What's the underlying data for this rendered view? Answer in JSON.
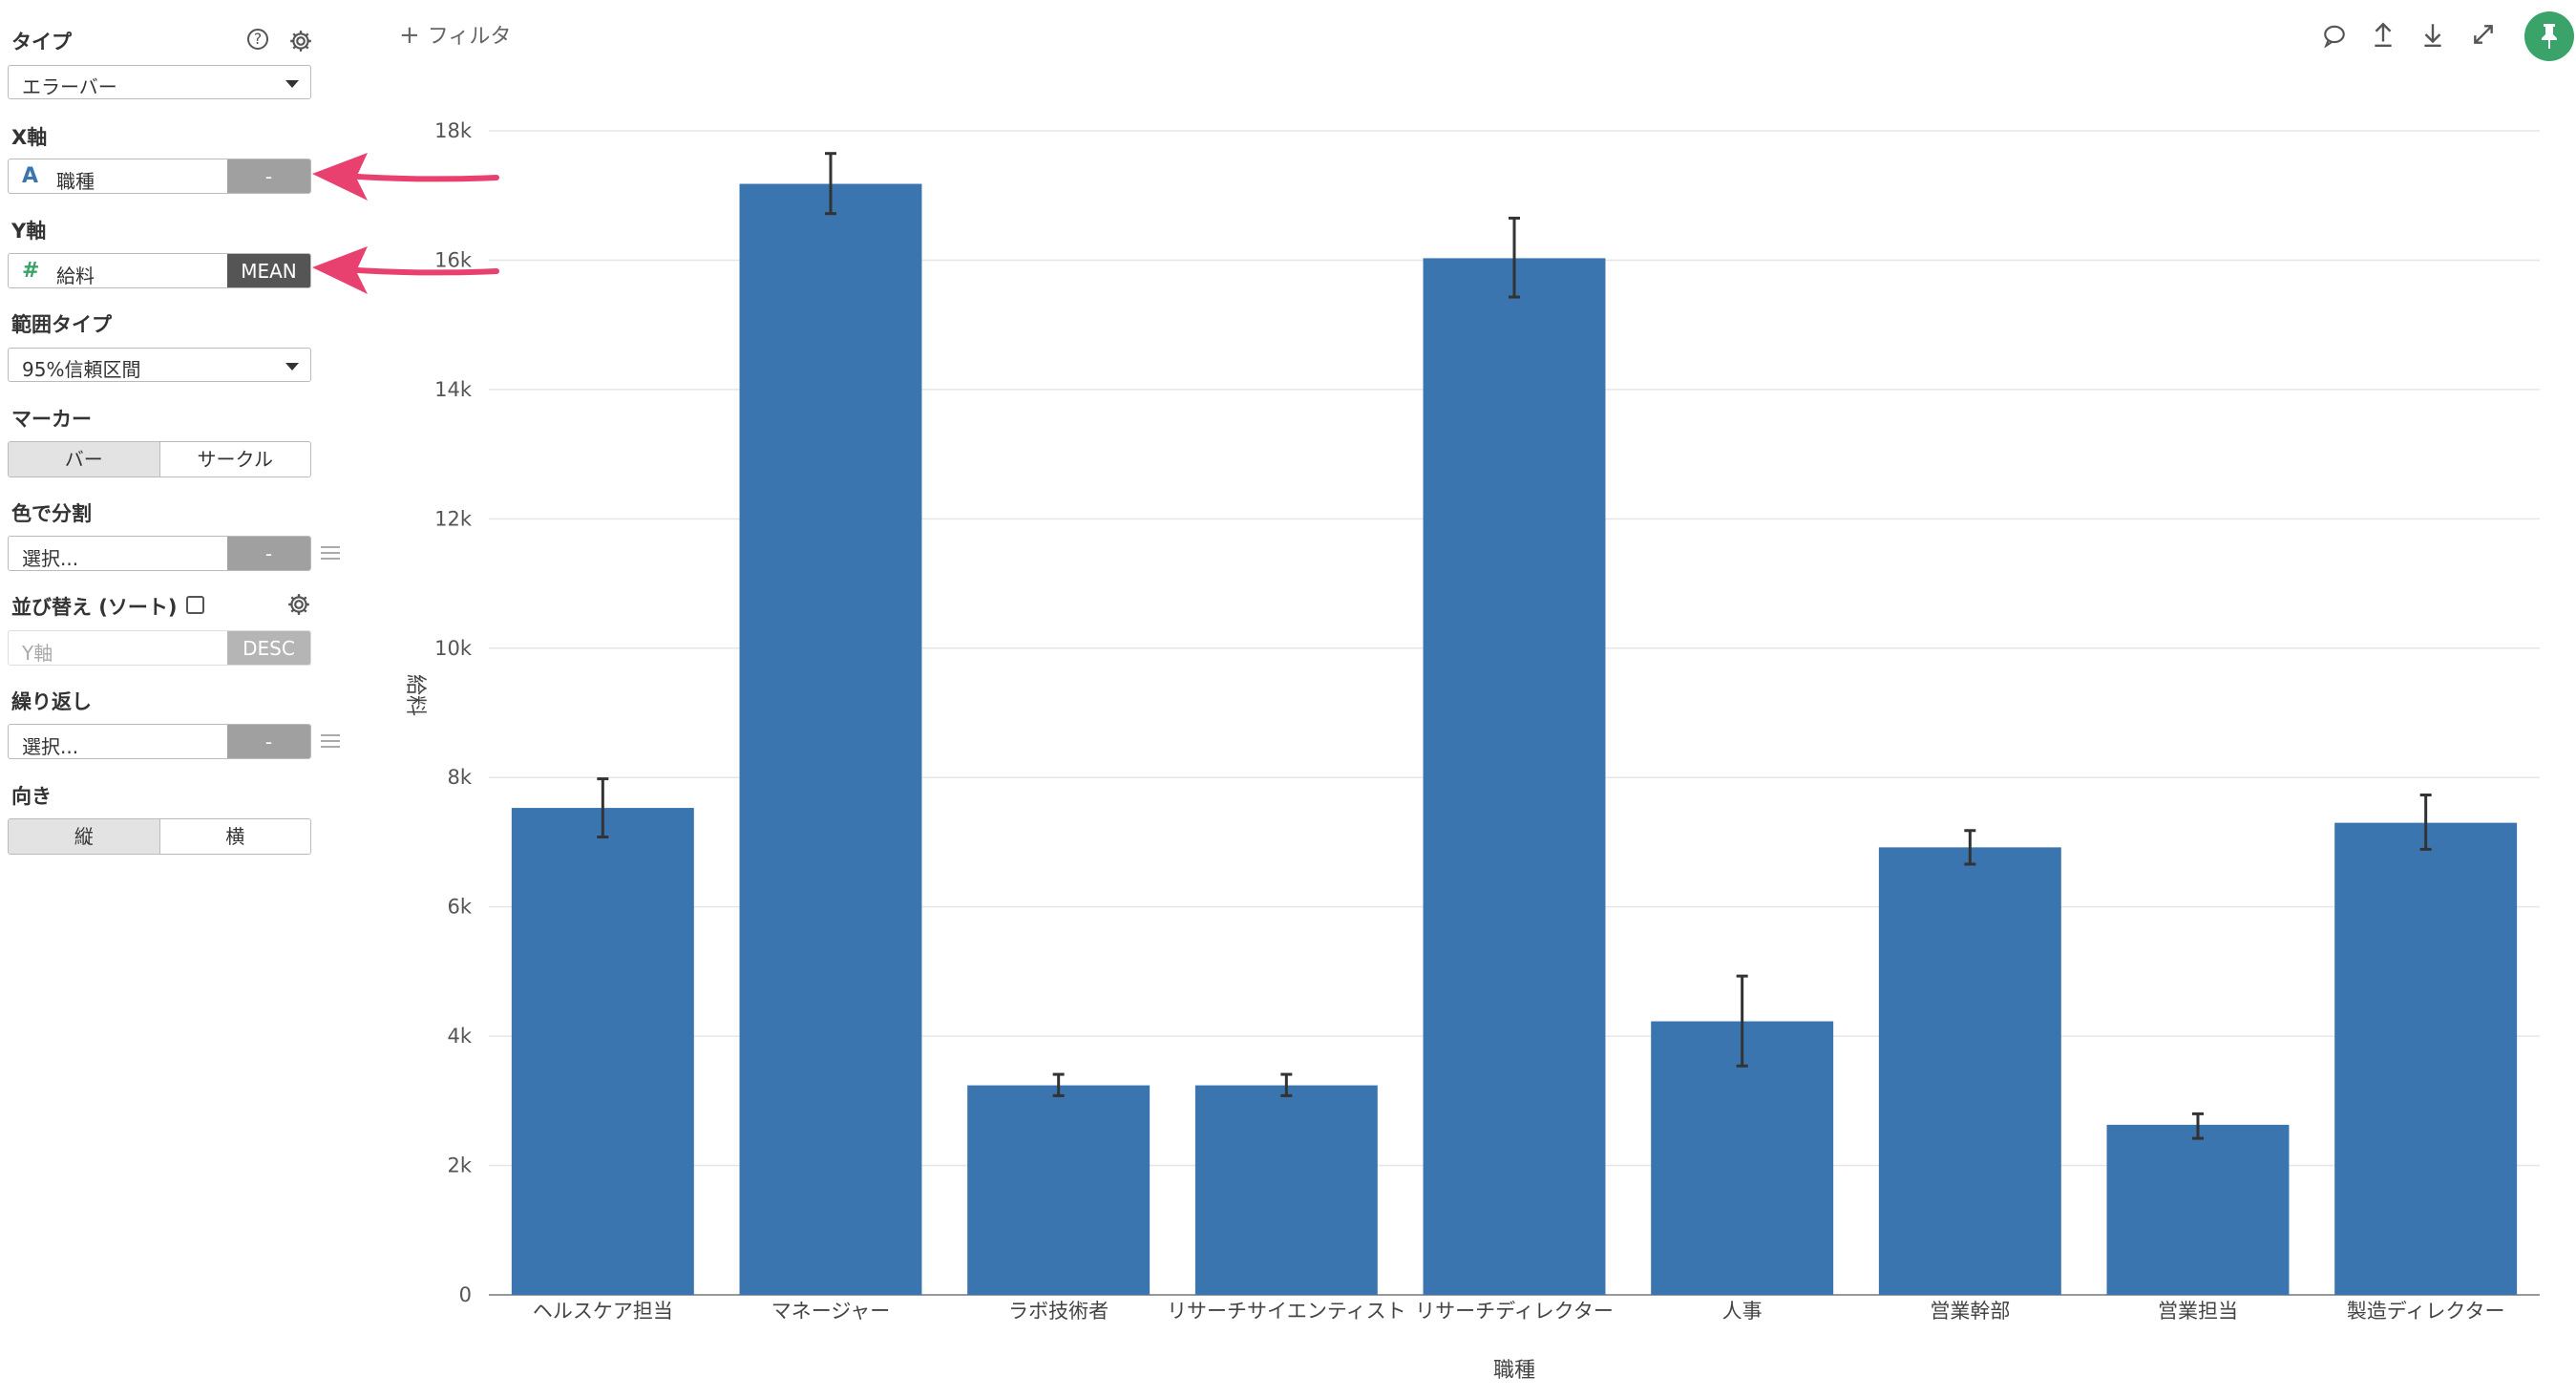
{
  "sidebar": {
    "type_label": "タイプ",
    "type_value": "エラーバー",
    "x_label": "X軸",
    "x_field_icon": "A",
    "x_field": "職種",
    "x_agg": "-",
    "y_label": "Y軸",
    "y_field_icon": "#",
    "y_field": "給料",
    "y_agg": "MEAN",
    "range_label": "範囲タイプ",
    "range_value": "95%信頼区間",
    "marker_label": "マーカー",
    "marker_opt1": "バー",
    "marker_opt2": "サークル",
    "color_label": "色で分割",
    "color_placeholder": "選択...",
    "color_agg": "-",
    "sort_label": "並び替え (ソート)",
    "sort_field_placeholder": "Y軸",
    "sort_order": "DESC",
    "repeat_label": "繰り返し",
    "repeat_placeholder": "選択...",
    "repeat_agg": "-",
    "orient_label": "向き",
    "orient_opt1": "縦",
    "orient_opt2": "横"
  },
  "toolbar": {
    "filter_label": "フィルタ",
    "filter_icon": "plus-icon",
    "icons": [
      "comment-icon",
      "upload-icon",
      "download-icon",
      "expand-icon",
      "pin-icon"
    ]
  },
  "colors": {
    "bar": "#3a75b0",
    "error_bar": "#333333",
    "arrow": "#e8406f",
    "pin": "#3aa36a"
  },
  "chart_data": {
    "type": "bar",
    "xlabel": "職種",
    "ylabel": "給料",
    "ylim": [
      0,
      18000
    ],
    "yticks": [
      0,
      2000,
      4000,
      6000,
      8000,
      10000,
      12000,
      14000,
      16000,
      18000
    ],
    "ytick_labels": [
      "0",
      "2k",
      "4k",
      "6k",
      "8k",
      "10k",
      "12k",
      "14k",
      "16k",
      "18k"
    ],
    "categories": [
      "ヘルスケア担当",
      "マネージャー",
      "ラボ技術者",
      "リサーチサイエンティスト",
      "リサーチディレクター",
      "人事",
      "営業幹部",
      "営業担当",
      "製造ディレクター"
    ],
    "values": [
      7530,
      17180,
      3240,
      3240,
      16030,
      4230,
      6920,
      2630,
      7300
    ],
    "error_low": [
      7080,
      16720,
      3080,
      3080,
      15430,
      3540,
      6660,
      2420,
      6890
    ],
    "error_high": [
      7980,
      17650,
      3410,
      3410,
      16650,
      4930,
      7180,
      2800,
      7730
    ],
    "grid": true
  }
}
